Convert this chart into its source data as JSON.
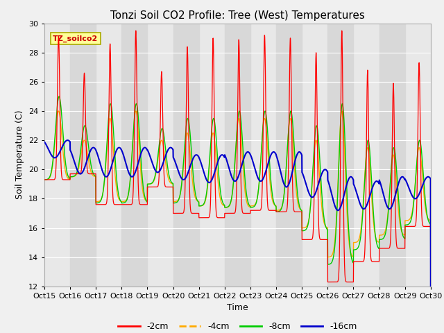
{
  "title": "Tonzi Soil CO2 Profile: Tree (West) Temperatures",
  "xlabel": "Time",
  "ylabel": "Soil Temperature (C)",
  "ylim": [
    12,
    30
  ],
  "xlim": [
    0,
    15
  ],
  "tick_labels": [
    "Oct 15",
    "Oct 16",
    "Oct 17",
    "Oct 18",
    "Oct 19",
    "Oct 20",
    "Oct 21",
    "Oct 22",
    "Oct 23",
    "Oct 24",
    "Oct 25",
    "Oct 26",
    "Oct 27",
    "Oct 28",
    "Oct 29",
    "Oct 30"
  ],
  "yticks": [
    12,
    14,
    16,
    18,
    20,
    22,
    24,
    26,
    28,
    30
  ],
  "colors": {
    "-2cm": "#ff0000",
    "-4cm": "#ffaa00",
    "-8cm": "#00cc00",
    "-16cm": "#0000cc"
  },
  "legend_label": "TZ_soilco2",
  "legend_box_facecolor": "#ffff99",
  "legend_box_edgecolor": "#aaaa00",
  "fig_facecolor": "#f0f0f0",
  "ax_facecolor": "#e8e8e8",
  "band_alt_color": "#d8d8d8",
  "title_fontsize": 11,
  "axis_label_fontsize": 9,
  "tick_fontsize": 8
}
